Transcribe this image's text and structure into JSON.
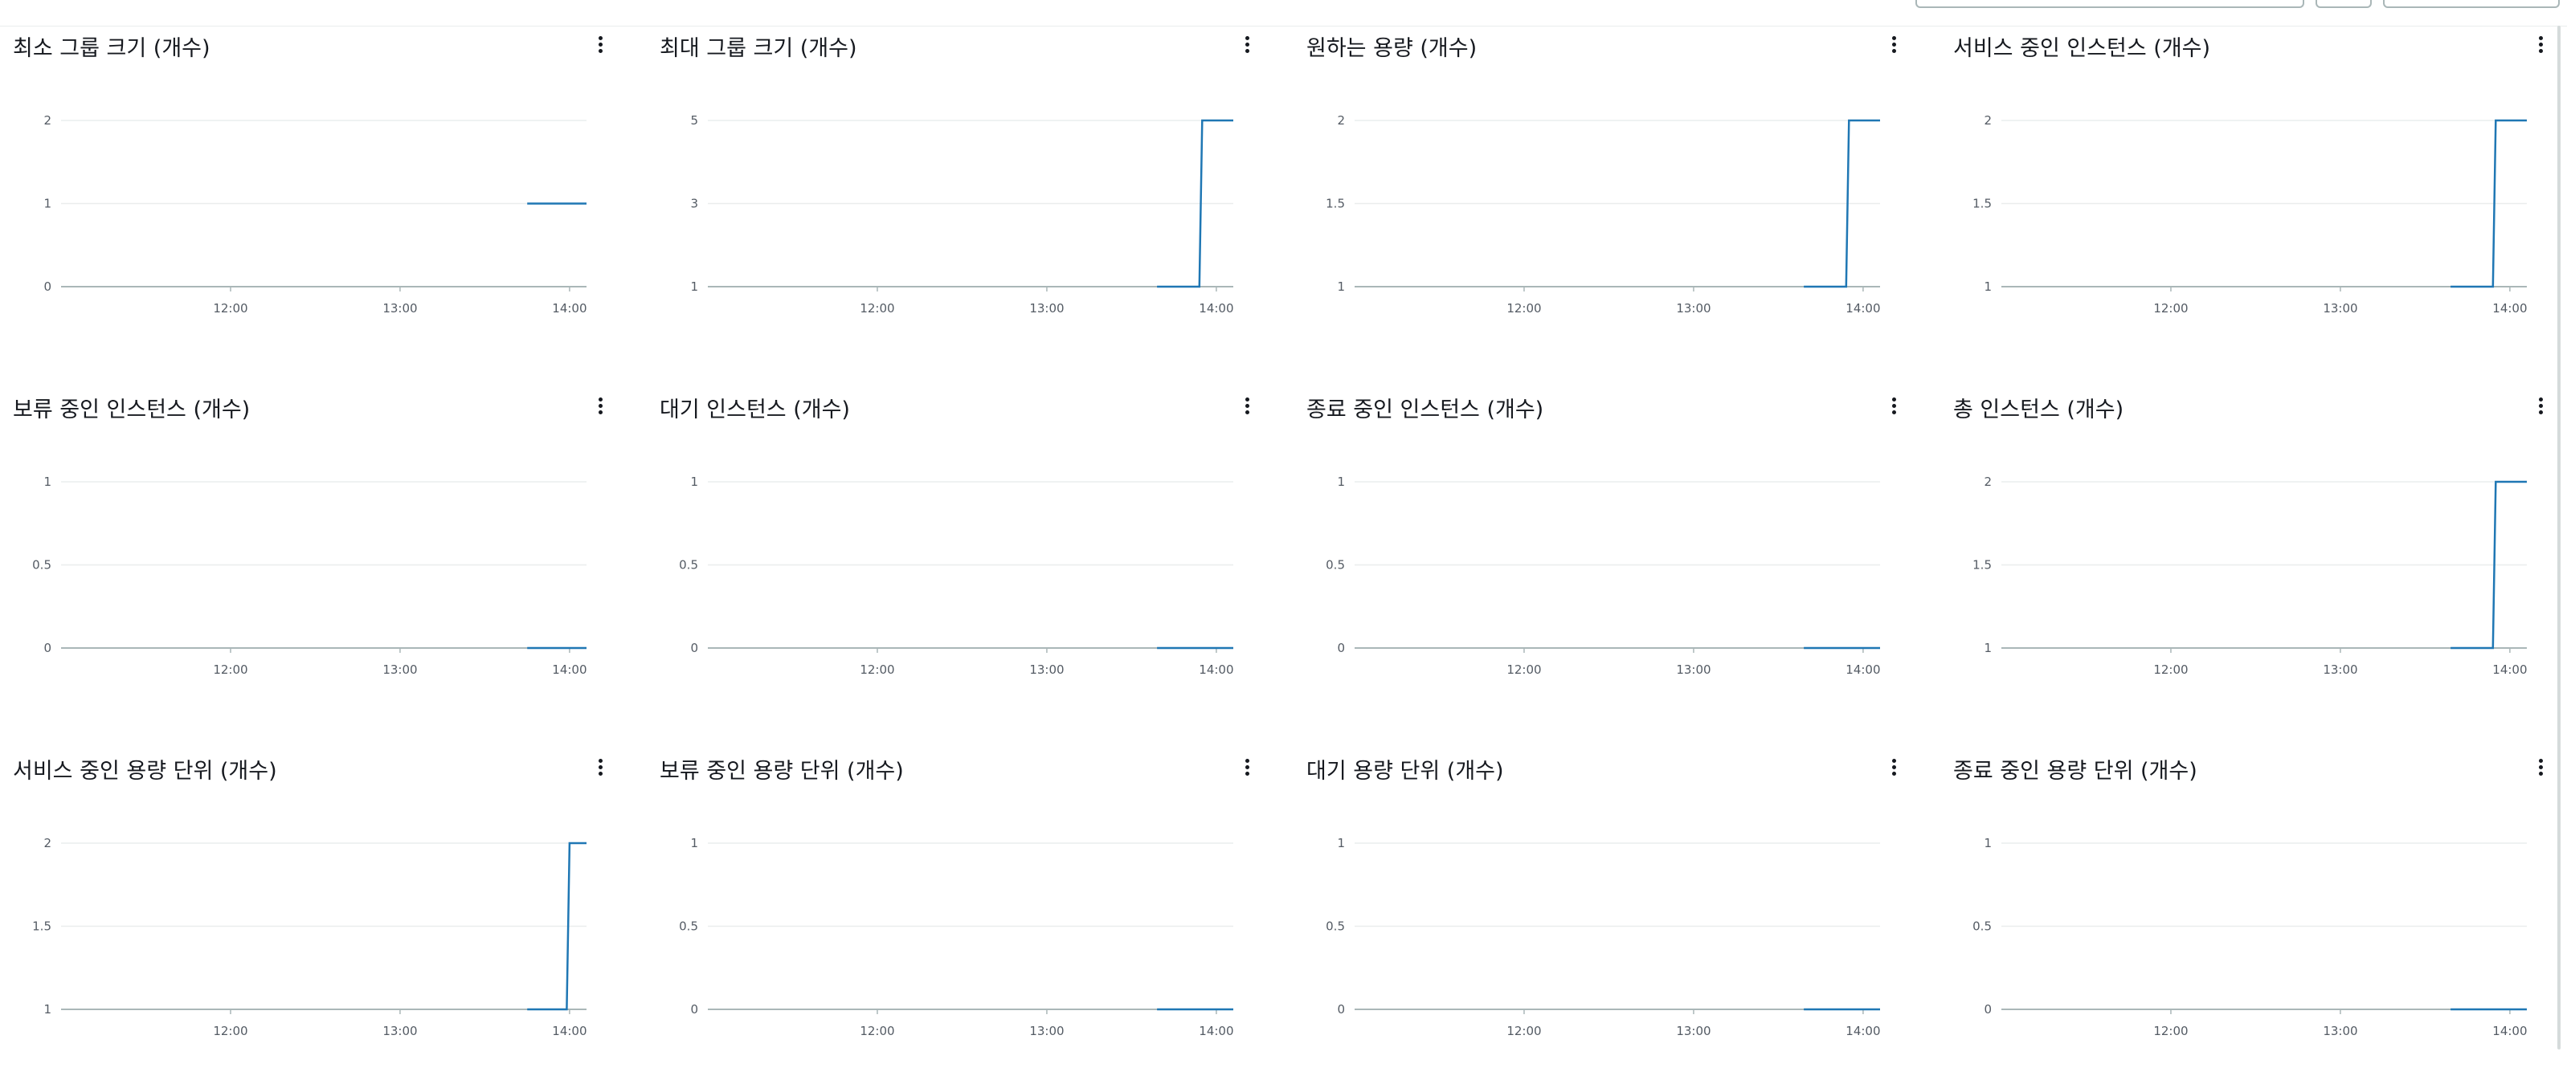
{
  "accent_color": "#1f77b4",
  "time_ticks": [
    "12:00",
    "13:00",
    "14:00"
  ],
  "chart_data": [
    {
      "type": "line",
      "title": "최소 그룹 크기 (개수)",
      "yticks": [
        "0",
        "1",
        "2"
      ],
      "ylim": [
        0,
        2
      ],
      "x": [
        "13:45",
        "14:06"
      ],
      "values": [
        1,
        1
      ]
    },
    {
      "type": "line",
      "title": "최대 그룹 크기 (개수)",
      "yticks": [
        "1",
        "3",
        "5"
      ],
      "ylim": [
        1,
        5
      ],
      "x": [
        "13:39",
        "13:54",
        "13:55",
        "14:06"
      ],
      "values": [
        1,
        1,
        5,
        5
      ]
    },
    {
      "type": "line",
      "title": "원하는 용량 (개수)",
      "yticks": [
        "1",
        "1.5",
        "2"
      ],
      "ylim": [
        1,
        2
      ],
      "x": [
        "13:39",
        "13:54",
        "13:55",
        "14:06"
      ],
      "values": [
        1,
        1,
        2,
        2
      ]
    },
    {
      "type": "line",
      "title": "서비스 중인 인스턴스 (개수)",
      "yticks": [
        "1",
        "1.5",
        "2"
      ],
      "ylim": [
        1,
        2
      ],
      "x": [
        "13:39",
        "13:54",
        "13:55",
        "14:06"
      ],
      "values": [
        1,
        1,
        2,
        2
      ]
    },
    {
      "type": "line",
      "title": "보류 중인 인스턴스 (개수)",
      "yticks": [
        "0",
        "0.5",
        "1"
      ],
      "ylim": [
        0,
        1
      ],
      "x": [
        "13:45",
        "14:06"
      ],
      "values": [
        0,
        0
      ]
    },
    {
      "type": "line",
      "title": "대기 인스턴스 (개수)",
      "yticks": [
        "0",
        "0.5",
        "1"
      ],
      "ylim": [
        0,
        1
      ],
      "x": [
        "13:39",
        "14:06"
      ],
      "values": [
        0,
        0
      ]
    },
    {
      "type": "line",
      "title": "종료 중인 인스턴스 (개수)",
      "yticks": [
        "0",
        "0.5",
        "1"
      ],
      "ylim": [
        0,
        1
      ],
      "x": [
        "13:39",
        "14:06"
      ],
      "values": [
        0,
        0
      ]
    },
    {
      "type": "line",
      "title": "총 인스턴스 (개수)",
      "yticks": [
        "1",
        "1.5",
        "2"
      ],
      "ylim": [
        1,
        2
      ],
      "x": [
        "13:39",
        "13:54",
        "13:55",
        "14:06"
      ],
      "values": [
        1,
        1,
        2,
        2
      ]
    },
    {
      "type": "line",
      "title": "서비스 중인 용량 단위 (개수)",
      "yticks": [
        "1",
        "1.5",
        "2"
      ],
      "ylim": [
        1,
        2
      ],
      "x": [
        "13:45",
        "13:59",
        "14:00",
        "14:06"
      ],
      "values": [
        1,
        1,
        2,
        2
      ]
    },
    {
      "type": "line",
      "title": "보류 중인 용량 단위 (개수)",
      "yticks": [
        "0",
        "0.5",
        "1"
      ],
      "ylim": [
        0,
        1
      ],
      "x": [
        "13:39",
        "14:06"
      ],
      "values": [
        0,
        0
      ]
    },
    {
      "type": "line",
      "title": "대기 용량 단위 (개수)",
      "yticks": [
        "0",
        "0.5",
        "1"
      ],
      "ylim": [
        0,
        1
      ],
      "x": [
        "13:39",
        "14:06"
      ],
      "values": [
        0,
        0
      ]
    },
    {
      "type": "line",
      "title": "종료 중인 용량 단위 (개수)",
      "yticks": [
        "0",
        "0.5",
        "1"
      ],
      "ylim": [
        0,
        1
      ],
      "x": [
        "13:39",
        "14:06"
      ],
      "values": [
        0,
        0
      ]
    }
  ]
}
